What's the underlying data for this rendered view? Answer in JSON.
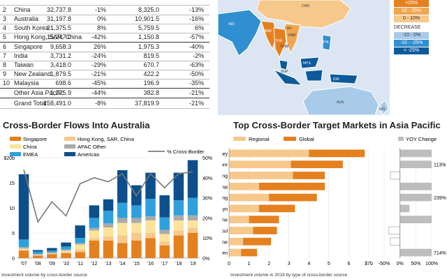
{
  "table": {
    "rows": [
      {
        "rank": "",
        "market": "",
        "v1": "",
        "p1": "",
        "v2": "",
        "p2": ""
      },
      {
        "rank": "2",
        "market": "China",
        "v1": "32,737.8",
        "p1": "-1%",
        "v2": "8,325.0",
        "p2": "-13%"
      },
      {
        "rank": "3",
        "market": "Australia",
        "v1": "31,197.8",
        "p1": "0%",
        "v2": "10,901.5",
        "p2": "-16%"
      },
      {
        "rank": "4",
        "market": "South Korea",
        "v1": "21,375.5",
        "p1": "8%",
        "v2": "5,759.5",
        "p2": "6%"
      },
      {
        "rank": "5",
        "market": "Hong Kong, SAR, China",
        "v1": "15,247.0",
        "p1": "-42%",
        "v2": "1,150.8",
        "p2": "-57%"
      },
      {
        "rank": "6",
        "market": "Singapore",
        "v1": "9,658.3",
        "p1": "26%",
        "v2": "1,975.3",
        "p2": "-40%"
      },
      {
        "rank": "7",
        "market": "India",
        "v1": "3,731.2",
        "p1": "-24%",
        "v2": "819.5",
        "p2": "-2%"
      },
      {
        "rank": "8",
        "market": "Taiwan",
        "v1": "3,418.0",
        "p1": "-29%",
        "v2": "670.7",
        "p2": "-63%"
      },
      {
        "rank": "9",
        "market": "New Zealand",
        "v1": "1,879.5",
        "p1": "-21%",
        "v2": "422.2",
        "p2": "-50%"
      },
      {
        "rank": "10",
        "market": "Malaysia",
        "v1": "698.6",
        "p1": "-45%",
        "v2": "196.9",
        "p2": "-35%"
      },
      {
        "rank": "",
        "market": "Other Asia Pacific",
        "v1": "1,275.9",
        "p1": "-44%",
        "v2": "382.8",
        "p2": "-21%"
      },
      {
        "rank": "",
        "market": "Grand Total",
        "v1": "158,491.0",
        "p1": "-8%",
        "v2": "37,819.9",
        "p2": "-21%"
      }
    ]
  },
  "map": {
    "labels": [
      "CHN",
      "IND",
      "MMR",
      "VNM",
      "THA",
      "LAO",
      "PHL",
      "KHM",
      "MYS",
      "SGP",
      "IDN",
      "AUS",
      "NZL"
    ],
    "legend": {
      "increase_items": [
        ">25%",
        "10 - 25%",
        "0 - 10%"
      ],
      "decrease_title": "DECREASE",
      "decrease_items": [
        "-10 - 0%",
        "-10 - -25%",
        "< -25%"
      ],
      "colors": {
        "inc_hi": "#e5801f",
        "inc_mid": "#f0a650",
        "inc_lo": "#f7c88c",
        "dec_lo": "#a9cbea",
        "dec_mid": "#2f8fd0",
        "dec_hi": "#0d5a9b"
      }
    }
  },
  "chart_data": [
    {
      "type": "bar",
      "title": "Cross-Border Flows Into Australia",
      "subtitle": "Investment volume by cross-border source",
      "categories": [
        "'07",
        "'08",
        "'09",
        "'10",
        "'11",
        "'12",
        "'13",
        "'14",
        "'15",
        "'16",
        "'17",
        "'18",
        "'19"
      ],
      "series": [
        {
          "name": "Singapore",
          "color": "#e5801f",
          "values": [
            1.5,
            0.5,
            0.8,
            1.0,
            1.2,
            3.5,
            3.5,
            3.0,
            3.5,
            4.0,
            2.5,
            4.5,
            5.0
          ]
        },
        {
          "name": "Hong Kong, SAR, China",
          "color": "#f7c88c",
          "values": [
            0.2,
            0.1,
            0.1,
            0.2,
            0.5,
            0.5,
            0.8,
            1.5,
            1.5,
            1.0,
            0.8,
            1.0,
            1.0
          ]
        },
        {
          "name": "China",
          "color": "#fce39a",
          "values": [
            0.2,
            0.1,
            0.1,
            0.3,
            1.0,
            1.5,
            1.8,
            2.5,
            2.0,
            2.5,
            1.5,
            2.0,
            1.5
          ]
        },
        {
          "name": "APAC Other",
          "color": "#aaaaaa",
          "values": [
            0.3,
            0.1,
            0.1,
            0.2,
            0.3,
            0.5,
            0.8,
            1.0,
            1.0,
            0.8,
            0.8,
            1.0,
            1.0
          ]
        },
        {
          "name": "EMEA",
          "color": "#2ea1dd",
          "values": [
            1.5,
            0.5,
            0.4,
            0.6,
            1.0,
            2.0,
            2.5,
            3.0,
            2.5,
            3.5,
            2.5,
            3.0,
            3.5
          ]
        },
        {
          "name": "Americas",
          "color": "#0d4f8b",
          "values": [
            13.0,
            0.3,
            0.5,
            0.8,
            2.5,
            2.5,
            2.3,
            6.5,
            4.0,
            5.2,
            4.4,
            5.5,
            7.5
          ]
        }
      ],
      "line": {
        "name": "% Cross-Border",
        "values": [
          44,
          18,
          28,
          21,
          37,
          40,
          38,
          42,
          31,
          42,
          35,
          42,
          43
        ]
      },
      "ylim": [
        0,
        20
      ],
      "yticks": [
        "$20b",
        "15",
        "10",
        "5",
        "0"
      ],
      "y2lim": [
        0,
        50
      ],
      "y2ticks": [
        "50%",
        "40%",
        "30%",
        "20%",
        "10%",
        "0%"
      ]
    },
    {
      "type": "bar",
      "title": "Top Cross-Border Target Markets in Asia Pacific",
      "subtitle": "Investment volume in 2019 by type of cross-border source",
      "categories": [
        "Sydney",
        "Singapore",
        "Hong Kong",
        "Shanghai",
        "Beijing",
        "Tokyo",
        "Melbourne",
        "Seoul",
        "Brisbane",
        "Shenzhen"
      ],
      "series": [
        {
          "name": "Regional",
          "color": "#f7c88c",
          "values": [
            4.0,
            3.1,
            3.2,
            1.5,
            2.0,
            1.5,
            1.0,
            1.2,
            0.7,
            0.6
          ]
        },
        {
          "name": "Global",
          "color": "#e5801f",
          "values": [
            2.8,
            2.6,
            1.6,
            3.3,
            2.4,
            1.8,
            1.5,
            1.2,
            1.4,
            0.8
          ]
        }
      ],
      "xlim": [
        0,
        7
      ],
      "xticks": [
        "0",
        "1",
        "2",
        "3",
        "4",
        "5",
        "6",
        "$7b"
      ],
      "yoy": {
        "name": "YOY Change",
        "values": [
          100,
          113,
          -30,
          100,
          239,
          30,
          100,
          -35,
          -30,
          714
        ],
        "xticks": [
          "-50%",
          "0%",
          "50%",
          "100%"
        ],
        "labels": {
          "1": "113%",
          "4": "239%",
          "9": "714%"
        }
      }
    }
  ]
}
